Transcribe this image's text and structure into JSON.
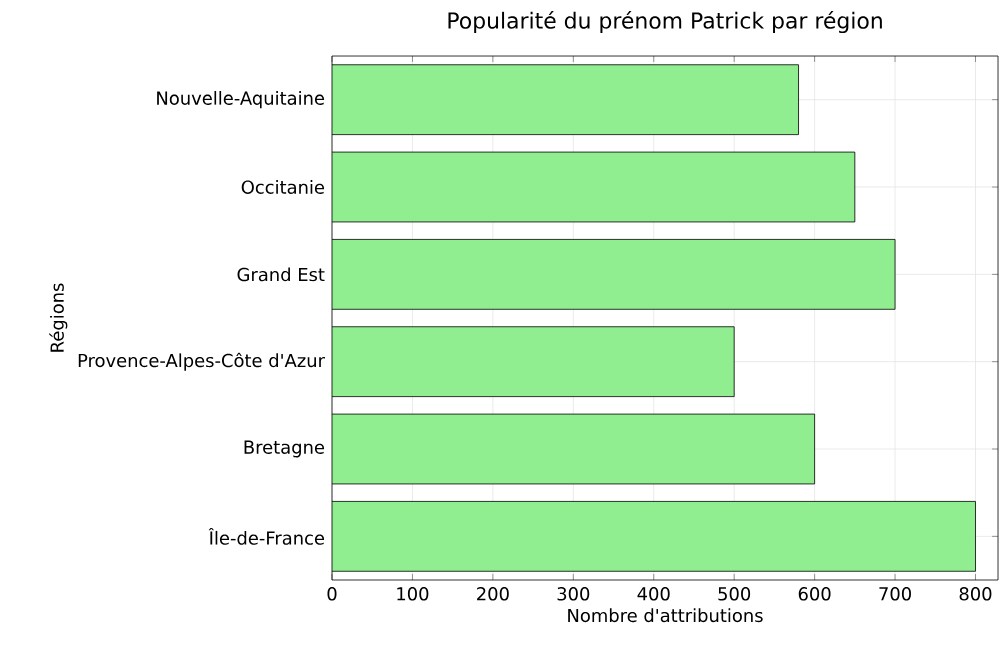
{
  "chart_data": {
    "type": "bar",
    "orientation": "horizontal",
    "title": "Popularité du prénom Patrick par région",
    "xlabel": "Nombre d'attributions",
    "ylabel": "Régions",
    "categories": [
      "Nouvelle-Aquitaine",
      "Occitanie",
      "Grand Est",
      "Provence-Alpes-Côte d'Azur",
      "Bretagne",
      "Île-de-France"
    ],
    "values": [
      580,
      650,
      700,
      500,
      600,
      800
    ],
    "color": "#90ee90",
    "xlim": [
      0,
      828
    ],
    "xticks": [
      0,
      100,
      200,
      300,
      400,
      500,
      600,
      700,
      800
    ],
    "grid": true
  }
}
